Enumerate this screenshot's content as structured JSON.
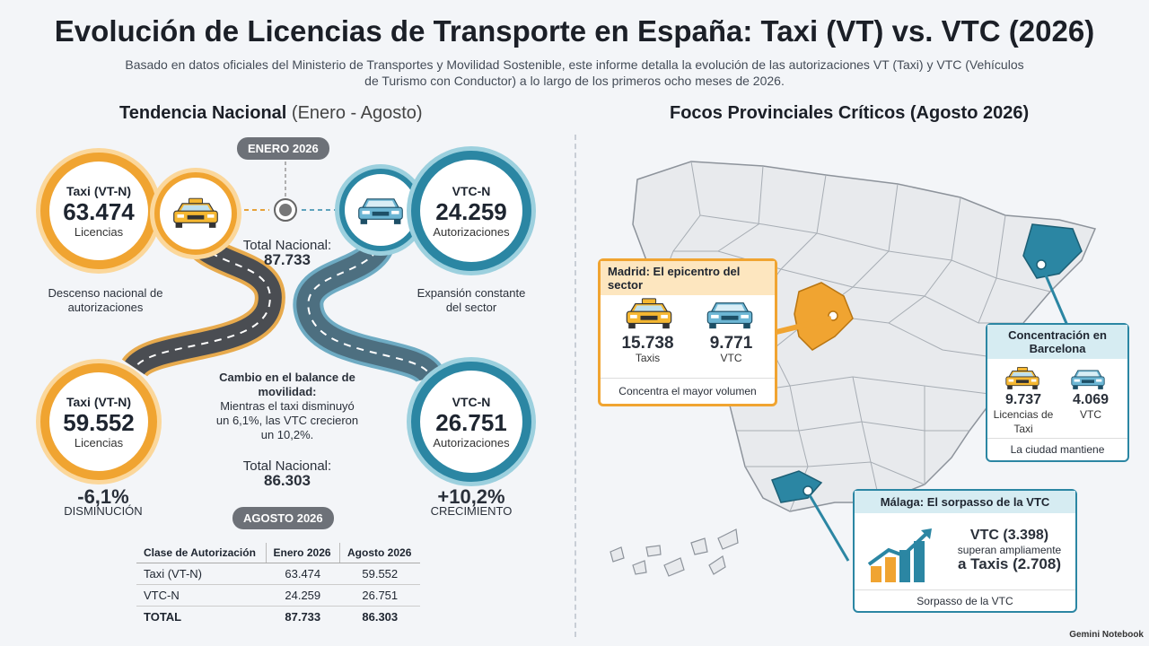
{
  "title": "Evolución de Licencias de Transporte en España: Taxi (VT) vs. VTC (2026)",
  "subtitle": "Basado en datos oficiales del Ministerio de Transportes y Movilidad Sostenible, este informe detalla la evolución de las autorizaciones VT (Taxi) y VTC (Vehículos de Turismo con Conductor) a lo largo de los primeros ocho meses de 2026.",
  "left": {
    "title": "Tendencia Nacional",
    "title_light": "(Enero - Agosto)",
    "pill_top": "ENERO 2026",
    "pill_bottom": "AGOSTO 2026",
    "taxi_jan": {
      "label": "Taxi (VT-N)",
      "value": "63.474",
      "unit": "Licencias"
    },
    "vtc_jan": {
      "label": "VTC-N",
      "value": "24.259",
      "unit": "Autorizaciones"
    },
    "taxi_aug": {
      "label": "Taxi (VT-N)",
      "value": "59.552",
      "unit": "Licencias"
    },
    "vtc_aug": {
      "label": "VTC-N",
      "value": "26.751",
      "unit": "Autorizaciones"
    },
    "total_label": "Total Nacional:",
    "total_jan": "87.733",
    "total_aug": "86.303",
    "taxi_desc": "Descenso nacional de autorizaciones",
    "vtc_desc": "Expansión constante del sector",
    "balance_title": "Cambio en el balance de movilidad:",
    "balance_text": "Mientras el taxi disminuyó un 6,1%, las VTC crecieron un 10,2%.",
    "taxi_change": "-6,1%",
    "taxi_change_lbl": "DISMINUCIÓN",
    "vtc_change": "+10,2%",
    "vtc_change_lbl": "CRECIMIENTO",
    "table": {
      "headers": [
        "Clase de Autorización",
        "Enero 2026",
        "Agosto 2026"
      ],
      "rows": [
        [
          "Taxi (VT-N)",
          "63.474",
          "59.552"
        ],
        [
          "VTC-N",
          "24.259",
          "26.751"
        ],
        [
          "TOTAL",
          "87.733",
          "86.303"
        ]
      ]
    }
  },
  "right": {
    "title": "Focos Provinciales Críticos (Agosto 2026)",
    "madrid": {
      "title": "Madrid: El epicentro del sector",
      "taxi": "15.738",
      "taxi_lbl": "Taxis",
      "vtc": "9.771",
      "vtc_lbl": "VTC",
      "footer": "Concentra el mayor volumen"
    },
    "barcelona": {
      "title": "Concentración en Barcelona",
      "taxi": "9.737",
      "taxi_lbl": "Licencias de Taxi",
      "vtc": "4.069",
      "vtc_lbl": "VTC",
      "footer": "La ciudad mantiene"
    },
    "malaga": {
      "title": "Málaga: El sorpasso de la VTC",
      "line1": "VTC (3.398)",
      "line2": "superan ampliamente",
      "line3": "a Taxis (2.708)",
      "footer": "Sorpasso de la VTC"
    }
  },
  "footer": "Gemini Notebook",
  "colors": {
    "orange": "#f0a431",
    "blue": "#2b86a3",
    "madrid": "#f0a431",
    "region": "#2b86a3"
  }
}
